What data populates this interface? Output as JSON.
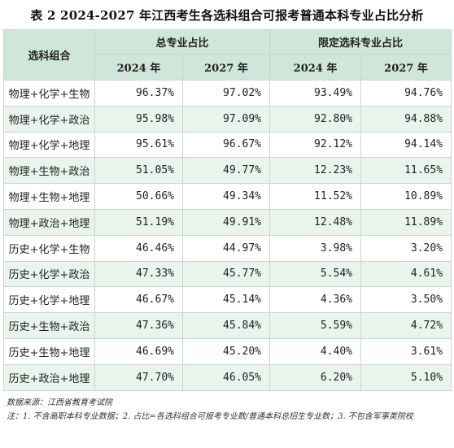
{
  "title": "表 2  2024-2027 年江西考生各选科组合可报考普通本科专业占比分析",
  "header": {
    "combo": "选科组合",
    "group_total": "总专业占比",
    "group_limited": "限定选科专业占比",
    "year_2024": "2024 年",
    "year_2027": "2027 年"
  },
  "rows": [
    {
      "combo": "物理+化学+生物",
      "total_2024": "96.37%",
      "total_2027": "97.02%",
      "limited_2024": "93.49%",
      "limited_2027": "94.76%"
    },
    {
      "combo": "物理+化学+政治",
      "total_2024": "95.98%",
      "total_2027": "97.09%",
      "limited_2024": "92.80%",
      "limited_2027": "94.88%"
    },
    {
      "combo": "物理+化学+地理",
      "total_2024": "95.61%",
      "total_2027": "96.67%",
      "limited_2024": "92.12%",
      "limited_2027": "94.14%"
    },
    {
      "combo": "物理+生物+政治",
      "total_2024": "51.05%",
      "total_2027": "49.77%",
      "limited_2024": "12.23%",
      "limited_2027": "11.65%"
    },
    {
      "combo": "物理+生物+地理",
      "total_2024": "50.66%",
      "total_2027": "49.34%",
      "limited_2024": "11.52%",
      "limited_2027": "10.89%"
    },
    {
      "combo": "物理+政治+地理",
      "total_2024": "51.19%",
      "total_2027": "49.91%",
      "limited_2024": "12.48%",
      "limited_2027": "11.89%"
    },
    {
      "combo": "历史+化学+生物",
      "total_2024": "46.46%",
      "total_2027": "44.97%",
      "limited_2024": "3.98%",
      "limited_2027": "3.20%"
    },
    {
      "combo": "历史+化学+政治",
      "total_2024": "47.33%",
      "total_2027": "45.77%",
      "limited_2024": "5.54%",
      "limited_2027": "4.61%"
    },
    {
      "combo": "历史+化学+地理",
      "total_2024": "46.67%",
      "total_2027": "45.14%",
      "limited_2024": "4.36%",
      "limited_2027": "3.50%"
    },
    {
      "combo": "历史+生物+政治",
      "total_2024": "47.36%",
      "total_2027": "45.84%",
      "limited_2024": "5.59%",
      "limited_2027": "4.72%"
    },
    {
      "combo": "历史+生物+地理",
      "total_2024": "46.69%",
      "total_2027": "45.20%",
      "limited_2024": "4.40%",
      "limited_2027": "3.61%"
    },
    {
      "combo": "历史+政治+地理",
      "total_2024": "47.70%",
      "total_2027": "46.05%",
      "limited_2024": "6.20%",
      "limited_2027": "5.10%"
    }
  ],
  "notes": {
    "source": "数据来源：江西省教育考试院",
    "note": "注：1. 不含高职本科专业数据；2. 占比=各选科组合可报考专业数/普通本科总招生专业数；3. 不包含军事类院校"
  },
  "colors": {
    "header_bg": "#cfe6da",
    "stripe_bg": "#e8f4ec",
    "border": "#c9d6cf"
  }
}
